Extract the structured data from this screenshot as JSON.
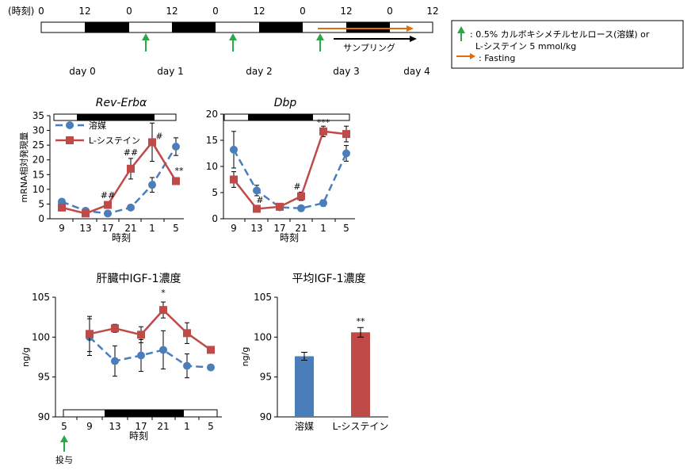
{
  "colors": {
    "vehicle": "#4A7EBB",
    "cysteine": "#BE4B48",
    "arrow_green": "#2BA84A",
    "arrow_orange": "#E36C09",
    "dark": "#000000"
  },
  "timeline": {
    "time_label": "(時刻)",
    "ticks": [
      "0",
      "12",
      "0",
      "12",
      "0",
      "12",
      "0",
      "12",
      "0",
      "12"
    ],
    "days": [
      "day 0",
      "day 1",
      "day 2",
      "day 3",
      "day 4"
    ],
    "sampling_label": "サンプリング"
  },
  "legend_box": {
    "line1": ": 0.5% カルボキシメチルセルロース(溶媒) or",
    "line2": "L-システイン 5 mmol/kg",
    "line3": ": Fasting"
  },
  "chart_data": [
    {
      "type": "line",
      "title": "Rev-Erbα",
      "ylabel": "mRNA相対発現量",
      "xlabel": "時刻",
      "categories": [
        "9",
        "13",
        "17",
        "21",
        "1",
        "5"
      ],
      "ylim": [
        0,
        35
      ],
      "yticks": [
        0,
        5,
        10,
        15,
        20,
        25,
        30,
        35
      ],
      "legend": [
        "溶媒",
        "L-システイン"
      ],
      "series": [
        {
          "name": "溶媒",
          "values": [
            5.8,
            2.7,
            1.8,
            3.8,
            11.5,
            24.5
          ],
          "err": [
            0.6,
            0.5,
            0.4,
            0.6,
            2.5,
            3.0
          ]
        },
        {
          "name": "L-システイン",
          "values": [
            3.8,
            1.8,
            4.7,
            17.0,
            26.0,
            12.8
          ],
          "err": [
            0.5,
            0.4,
            0.6,
            3.5,
            6.5,
            1.0
          ]
        }
      ],
      "annotations": [
        {
          "category": "17",
          "text": "##",
          "y": 7.0
        },
        {
          "category": "21",
          "text": "##",
          "y": 21.5
        },
        {
          "category": "1",
          "text": "#",
          "y": 27.0
        },
        {
          "category": "5",
          "text": "**",
          "y": 15.3
        }
      ]
    },
    {
      "type": "line",
      "title": "Dbp",
      "xlabel": "時刻",
      "categories": [
        "9",
        "13",
        "17",
        "21",
        "1",
        "5"
      ],
      "ylim": [
        0,
        20
      ],
      "yticks": [
        0,
        5,
        10,
        15,
        20
      ],
      "series": [
        {
          "name": "溶媒",
          "values": [
            13.2,
            5.4,
            2.2,
            2.0,
            3.0,
            12.5
          ],
          "err": [
            3.5,
            1.0,
            0.3,
            0.3,
            0.6,
            1.5
          ]
        },
        {
          "name": "L-システイン",
          "values": [
            7.5,
            1.9,
            2.3,
            4.3,
            16.7,
            16.2
          ],
          "err": [
            1.5,
            0.4,
            0.3,
            0.8,
            1.0,
            1.5
          ]
        }
      ],
      "annotations": [
        {
          "category": "13",
          "text": "#",
          "y": 3.0
        },
        {
          "category": "21",
          "text": "#",
          "y": 5.6
        },
        {
          "category": "1",
          "text": "***",
          "y": 17.9
        }
      ]
    },
    {
      "type": "line",
      "title": "肝臓中IGF-1濃度",
      "ylabel": "ng/g",
      "xlabel": "時刻",
      "categories": [
        "5",
        "9",
        "13",
        "17",
        "21",
        "1",
        "5"
      ],
      "ylim": [
        90,
        105
      ],
      "yticks": [
        90,
        95,
        100,
        105
      ],
      "series": [
        {
          "name": "溶媒",
          "values": [
            null,
            100.0,
            97.0,
            97.7,
            98.4,
            96.4,
            96.2
          ],
          "err": [
            null,
            2.3,
            1.9,
            2.0,
            2.4,
            1.5,
            0.3
          ]
        },
        {
          "name": "L-システイン",
          "values": [
            null,
            100.4,
            101.1,
            100.3,
            103.4,
            100.5,
            98.4
          ],
          "err": [
            null,
            2.2,
            0.5,
            1.0,
            1.0,
            1.3,
            0.1
          ]
        }
      ],
      "annotations": [
        {
          "category": "21",
          "text": "*",
          "y": 105.2
        }
      ],
      "dose_label": "投与"
    },
    {
      "type": "bar",
      "title": "平均IGF-1濃度",
      "ylabel": "ng/g",
      "categories": [
        "溶媒",
        "L-システイン"
      ],
      "values": [
        97.6,
        100.6
      ],
      "err": [
        0.5,
        0.6
      ],
      "ylim": [
        90,
        105
      ],
      "yticks": [
        90,
        95,
        100,
        105
      ],
      "annotations": [
        {
          "category": "L-システイン",
          "text": "**",
          "y": 101.6
        }
      ]
    }
  ]
}
